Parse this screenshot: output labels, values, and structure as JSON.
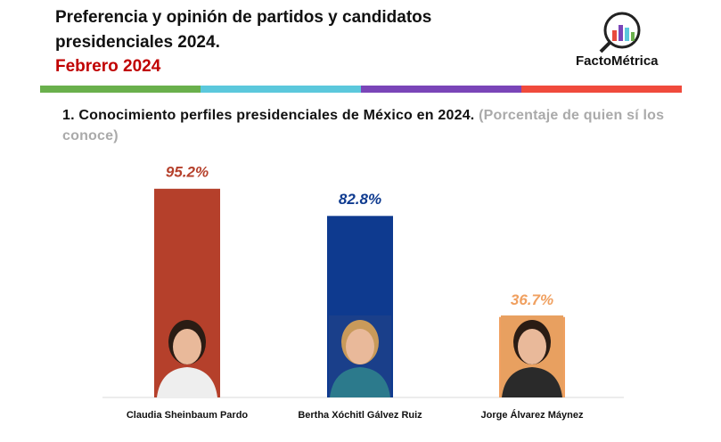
{
  "chart_data": {
    "type": "bar",
    "header": "Preferencia y opinión de partidos y candidatos presidenciales 2024.",
    "date": "Febrero 2024",
    "brand": "FactoMétrica",
    "title": "1. Conocimiento perfiles presidenciales de México en 2024.",
    "subtitle": "(Porcentaje de quien sí los conoce)",
    "categories": [
      "Claudia Sheinbaum Pardo",
      "Bertha Xóchitl Gálvez Ruiz",
      "Jorge Álvarez Máynez"
    ],
    "values": [
      95.2,
      82.8,
      36.7
    ],
    "value_labels": [
      "95.2%",
      "82.8%",
      "36.7%"
    ],
    "colors": [
      "#b5402b",
      "#0e3a8f",
      "#f0a060"
    ]
  }
}
